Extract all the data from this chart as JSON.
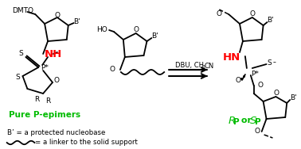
{
  "bg_color": "#ffffff",
  "green_color": "#00bb00",
  "red_color": "#ff0000",
  "black_color": "#000000",
  "label_pure": "Pure P-epimers",
  "label_rp_sp_r": "R",
  "label_rp_sp_p1": "P",
  "label_rp_sp_or": " or ",
  "label_rp_sp_s": "S",
  "label_rp_sp_p2": "P",
  "label_b_def": "B’ = a protected nucleobase",
  "label_linker_def": "  = a linker to the solid support"
}
